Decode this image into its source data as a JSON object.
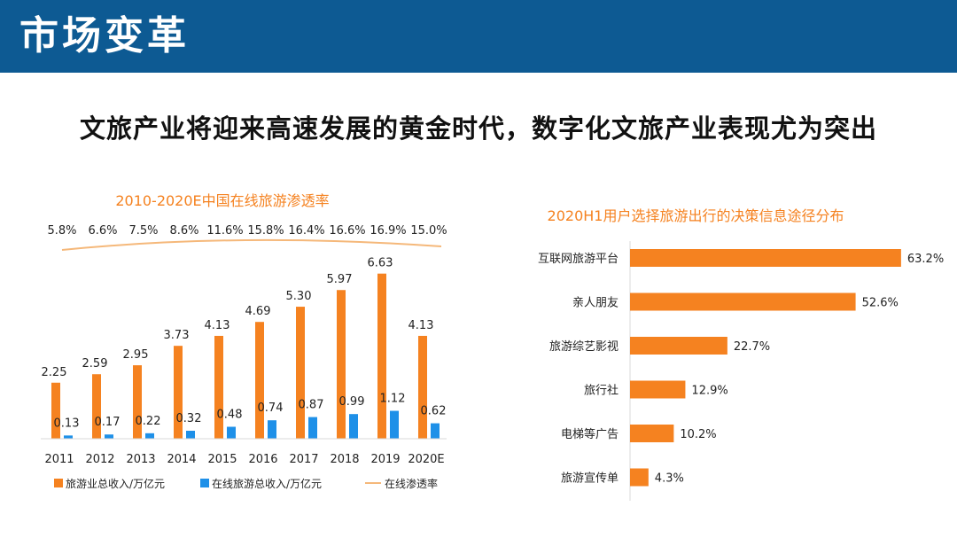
{
  "header": {
    "title": "市场变革",
    "bar_color": "#0d5a93"
  },
  "headline": "文旅产业将迎来高速发展的黄金时代，数字化文旅产业表现尤为突出",
  "colors": {
    "accent_orange": "#f58220",
    "accent_blue": "#1e90e8",
    "line_orange": "#f5b87a"
  },
  "chart_data": [
    {
      "type": "bar",
      "title": "2010-2020E中国在线旅游渗透率",
      "categories": [
        "2011",
        "2012",
        "2013",
        "2014",
        "2015",
        "2016",
        "2017",
        "2018",
        "2019",
        "2020E"
      ],
      "series": [
        {
          "name": "旅游业总收入/万亿元",
          "type": "bar",
          "color": "#f58220",
          "values": [
            2.25,
            2.59,
            2.95,
            3.73,
            4.13,
            4.69,
            5.3,
            5.97,
            6.63,
            4.13
          ],
          "labels": [
            "2.25",
            "2.59",
            "2.95",
            "3.73",
            "4.13",
            "4.69",
            "5.30",
            "5.97",
            "6.63",
            "4.13"
          ]
        },
        {
          "name": "在线旅游总收入/万亿元",
          "type": "bar",
          "color": "#1e90e8",
          "values": [
            0.13,
            0.17,
            0.22,
            0.32,
            0.48,
            0.74,
            0.87,
            0.99,
            1.12,
            0.62
          ],
          "labels": [
            "0.13",
            "0.17",
            "0.22",
            "0.32",
            "0.48",
            "0.74",
            "0.87",
            "0.99",
            "1.12",
            "0.62"
          ]
        },
        {
          "name": "在线渗透率",
          "type": "line",
          "color": "#f5b87a",
          "values": [
            5.8,
            6.6,
            7.5,
            8.6,
            11.6,
            15.8,
            16.4,
            16.6,
            16.9,
            15.0
          ],
          "labels": [
            "5.8%",
            "6.6%",
            "7.5%",
            "8.6%",
            "11.6%",
            "15.8%",
            "16.4%",
            "16.6%",
            "16.9%",
            "15.0%"
          ]
        }
      ],
      "legend_position": "bottom",
      "grid": false
    },
    {
      "type": "bar",
      "orientation": "horizontal",
      "title": "2020H1用户选择旅游出行的决策信息途径分布",
      "categories": [
        "互联网旅游平台",
        "亲人朋友",
        "旅游综艺影视",
        "旅行社",
        "电梯等广告",
        "旅游宣传单"
      ],
      "values": [
        63.2,
        52.6,
        22.7,
        12.9,
        10.2,
        4.3
      ],
      "labels": [
        "63.2%",
        "52.6%",
        "22.7%",
        "12.9%",
        "10.2%",
        "4.3%"
      ],
      "unit": "%",
      "grid": false
    }
  ]
}
